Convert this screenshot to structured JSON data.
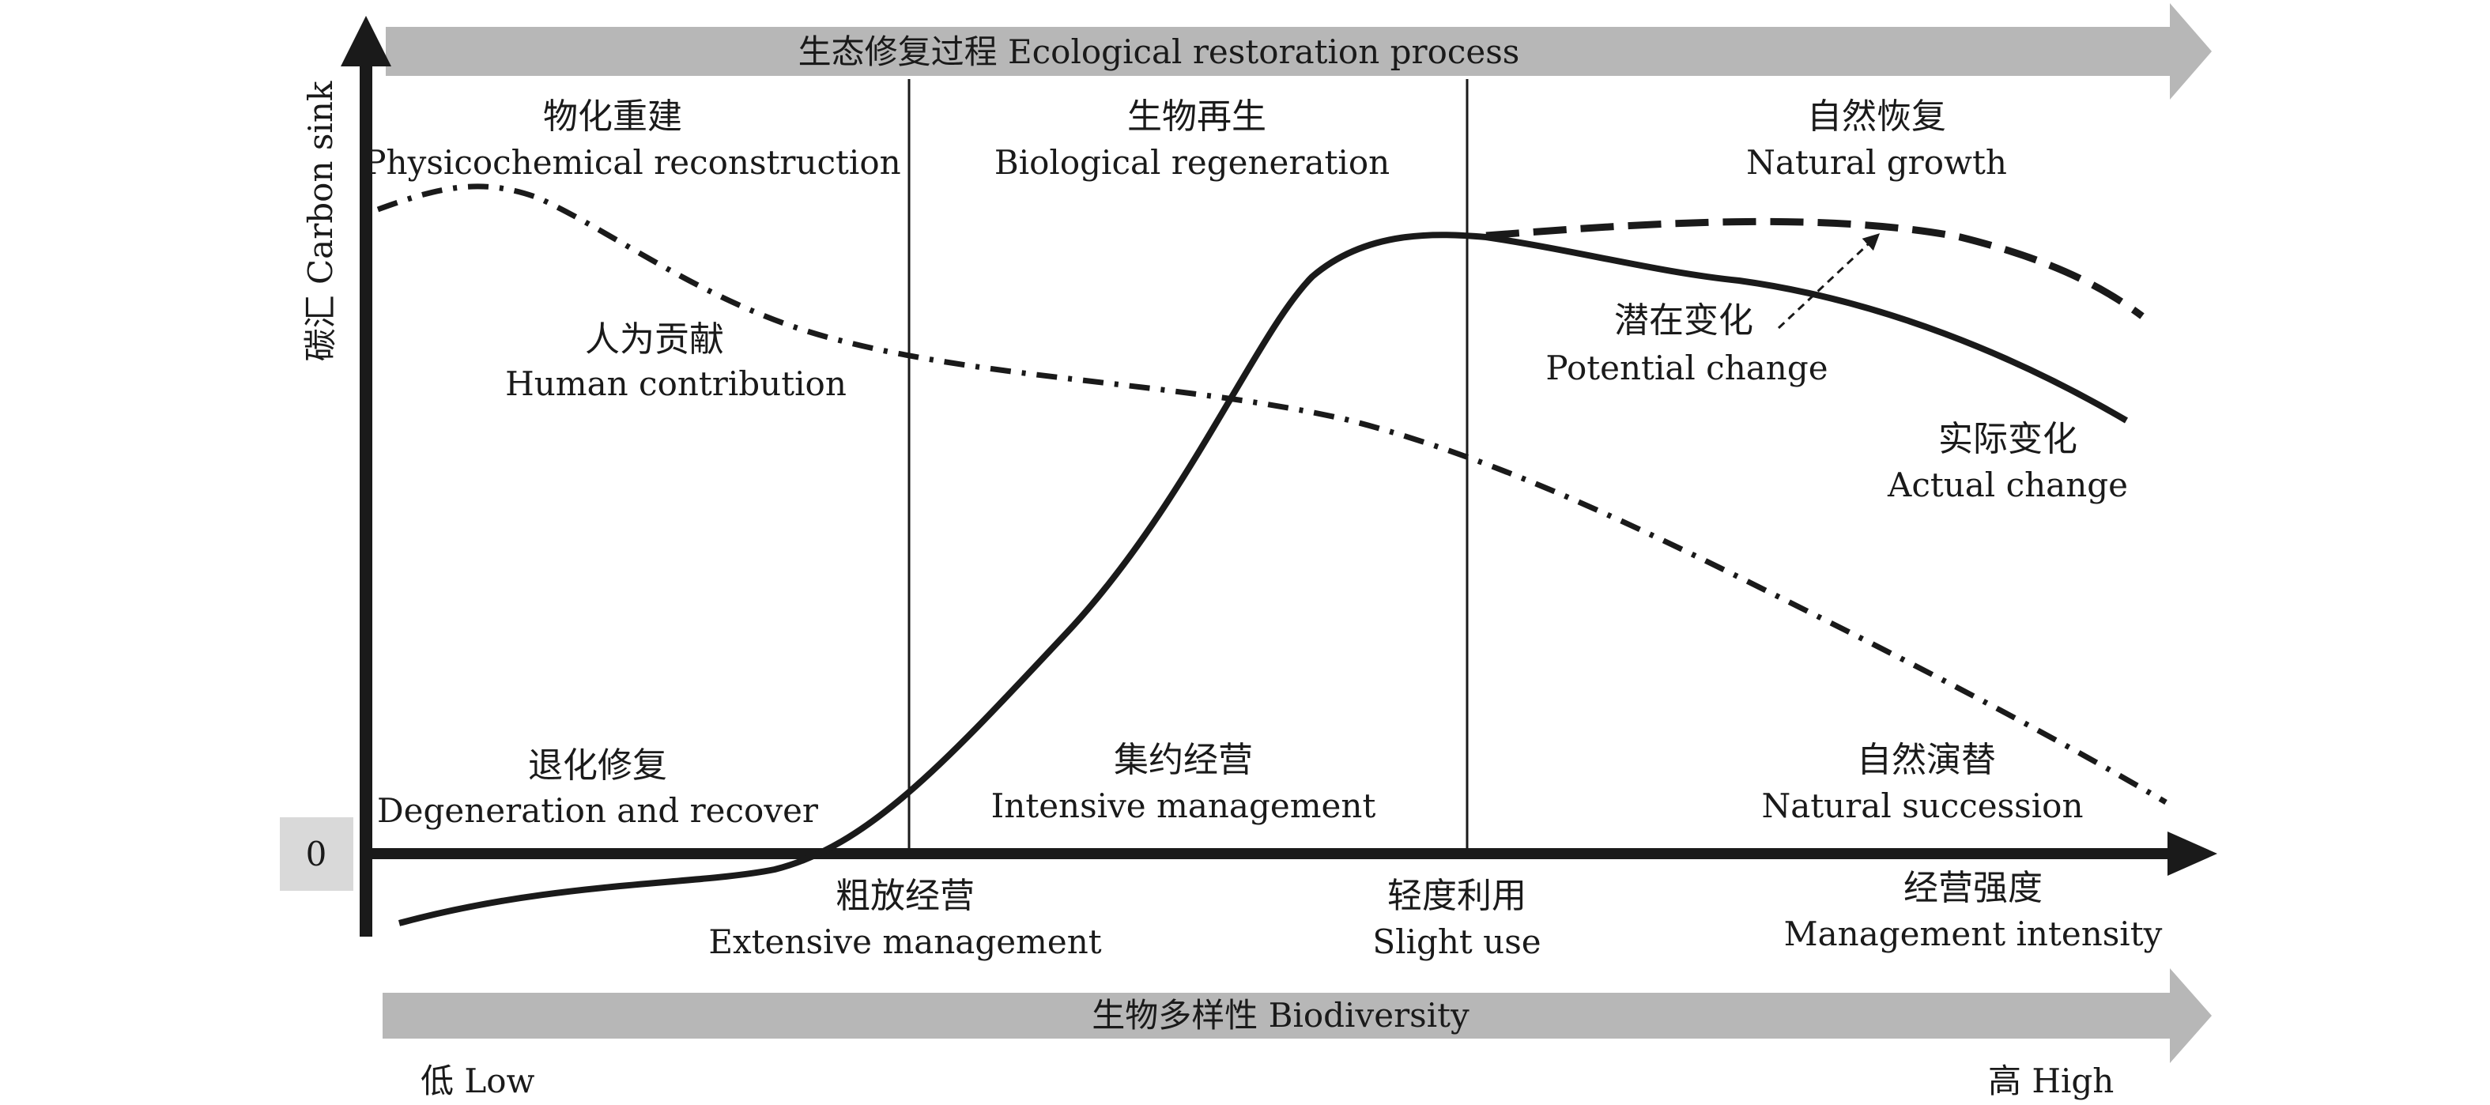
{
  "colors": {
    "banner_fill": "#b7b7b7",
    "axis": "#1a1a1a",
    "zero_box": "#d9d9d9"
  },
  "banners": {
    "top": "生态修复过程 Ecological restoration process",
    "bottom": "生物多样性 Biodiversity"
  },
  "axes": {
    "y_label": "碳汇 Carbon sink",
    "zero": "0",
    "x_label_zh": "经营强度",
    "x_label_en": "Management intensity"
  },
  "stages": [
    {
      "zh": "物化重建",
      "en": "Physicochemical reconstruction"
    },
    {
      "zh": "生物再生",
      "en": "Biological regeneration"
    },
    {
      "zh": "自然恢复",
      "en": "Natural growth"
    }
  ],
  "management": [
    {
      "zh": "退化修复",
      "en": "Degeneration and recover"
    },
    {
      "zh": "集约经营",
      "en": "Intensive management"
    },
    {
      "zh": "自然演替",
      "en": "Natural succession"
    }
  ],
  "x_ticks": [
    {
      "zh": "粗放经营",
      "en": "Extensive management"
    },
    {
      "zh": "轻度利用",
      "en": "Slight use"
    }
  ],
  "curves": {
    "human": {
      "zh": "人为贡献",
      "en": "Human contribution"
    },
    "potential": {
      "zh": "潜在变化",
      "en": "Potential change"
    },
    "actual": {
      "zh": "实际变化",
      "en": "Actual change"
    }
  },
  "biodiversity": {
    "low": "低 Low",
    "high": "高 High"
  }
}
